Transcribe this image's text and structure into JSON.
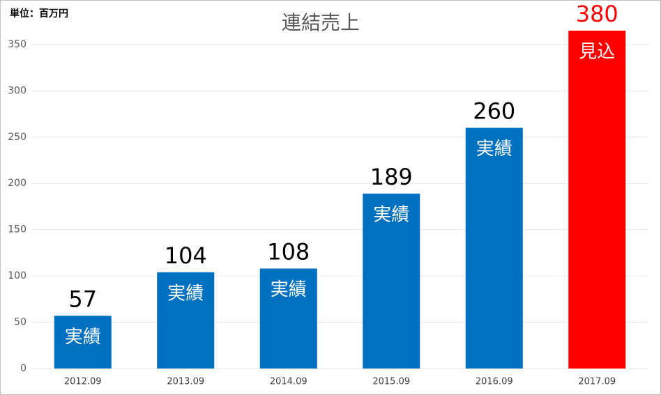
{
  "chart_data": {
    "type": "bar",
    "title": "連結売上",
    "annotation": "単位：百万円",
    "categories": [
      "2012.09",
      "2013.09",
      "2014.09",
      "2015.09",
      "2016.09",
      "2017.09"
    ],
    "values": [
      57,
      104,
      108,
      189,
      260,
      380
    ],
    "bar_labels": [
      "実績",
      "実績",
      "実績",
      "実績",
      "実績",
      "見込"
    ],
    "colors": [
      "#0070c0",
      "#0070c0",
      "#0070c0",
      "#0070c0",
      "#0070c0",
      "#ff0000"
    ],
    "value_label_colors": [
      "#000000",
      "#000000",
      "#000000",
      "#000000",
      "#000000",
      "#ff0000"
    ],
    "ylim": [
      0,
      365
    ],
    "yticks": [
      0,
      50,
      100,
      150,
      200,
      250,
      300,
      350
    ],
    "grid": true
  }
}
